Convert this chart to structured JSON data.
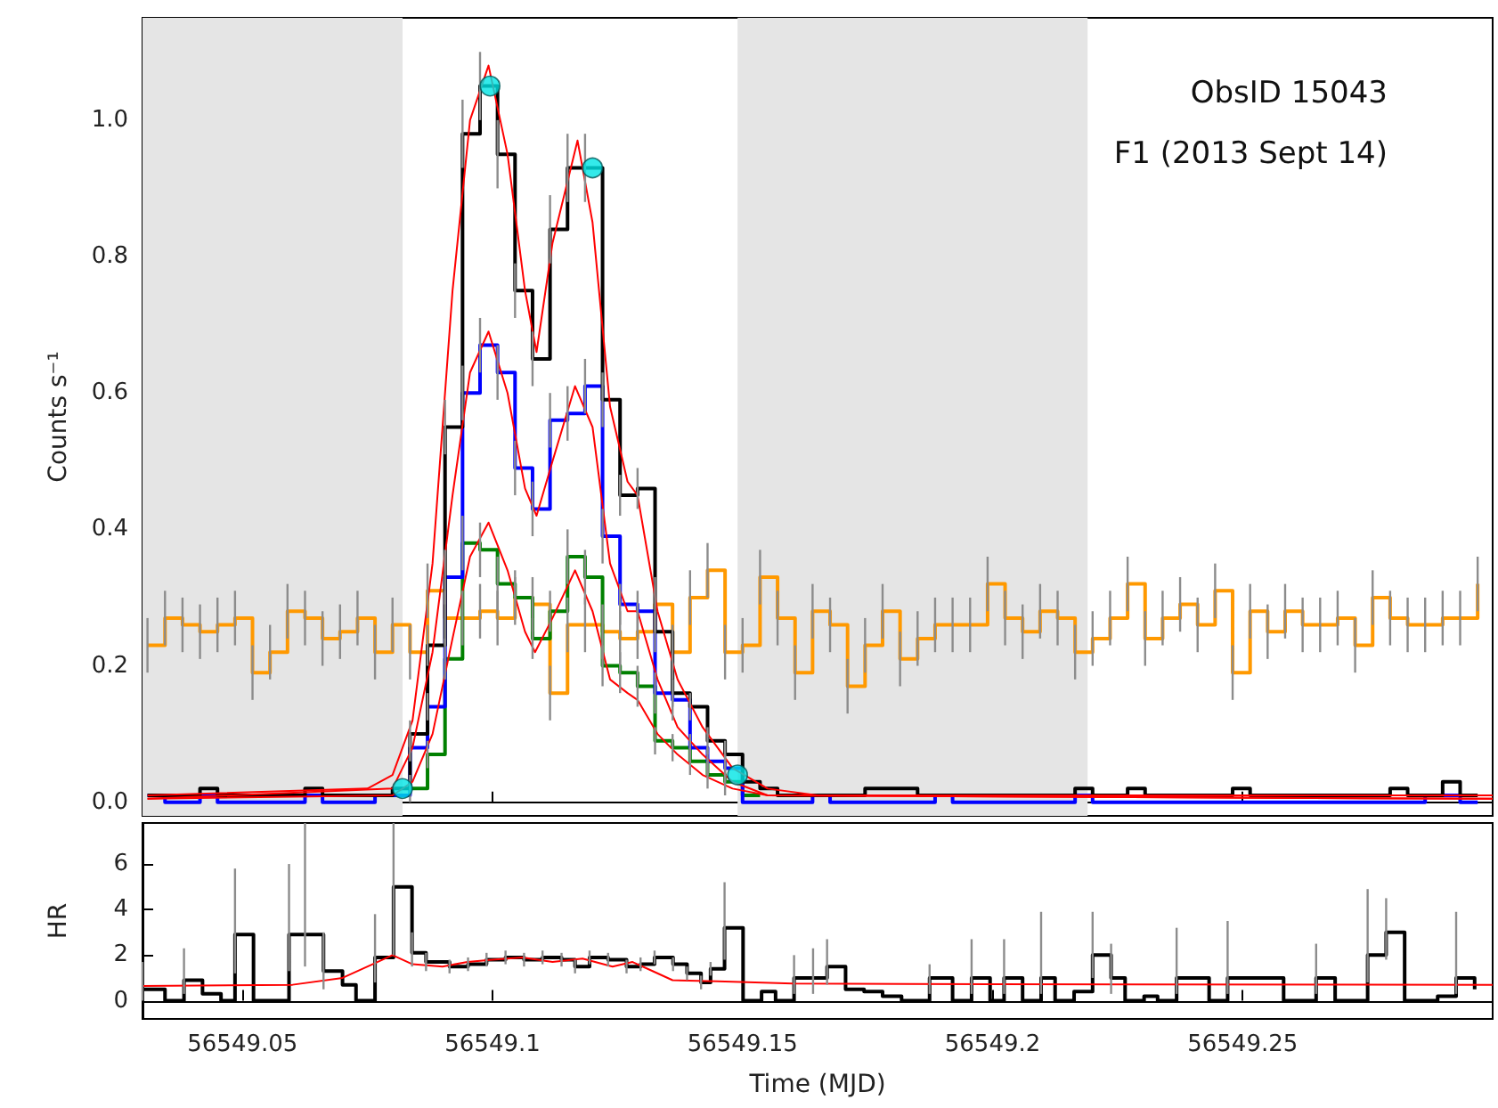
{
  "chart_data": [
    {
      "type": "step",
      "ylabel": "Counts s⁻¹",
      "annotations": [
        "ObsID 15043",
        "F1 (2013 Sept 14)"
      ],
      "xlim": [
        56549.03,
        56549.3
      ],
      "xticks": [
        56549.05,
        56549.1,
        56549.15,
        56549.2,
        56549.25
      ],
      "ylim": [
        -0.02,
        1.15
      ],
      "yticks": [
        {
          "value": 0,
          "label": "0.0"
        },
        0.2,
        0.4,
        0.6,
        0.8,
        {
          "value": 1,
          "label": "1.0"
        }
      ],
      "tick_labels": "y",
      "bands": [
        {
          "axis": "x",
          "from": 56549.03,
          "to": 56549.082,
          "color": "#e5e5e5"
        },
        {
          "axis": "x",
          "from": 56549.149,
          "to": 56549.219,
          "color": "#e5e5e5"
        }
      ],
      "x": [
        56549.031,
        56549.0345,
        56549.038,
        56549.0415,
        56549.045,
        56549.0485,
        56549.052,
        56549.0555,
        56549.059,
        56549.0625,
        56549.066,
        56549.0695,
        56549.073,
        56549.0765,
        56549.08,
        56549.0835,
        56549.087,
        56549.0905,
        56549.094,
        56549.0975,
        56549.101,
        56549.1045,
        56549.108,
        56549.1115,
        56549.115,
        56549.1185,
        56549.122,
        56549.1255,
        56549.129,
        56549.1325,
        56549.136,
        56549.1395,
        56549.143,
        56549.1465,
        56549.15,
        56549.1535,
        56549.157,
        56549.1605,
        56549.164,
        56549.1675,
        56549.171,
        56549.1745,
        56549.178,
        56549.1815,
        56549.185,
        56549.1885,
        56549.192,
        56549.1955,
        56549.199,
        56549.2025,
        56549.206,
        56549.2095,
        56549.213,
        56549.2165,
        56549.22,
        56549.2235,
        56549.227,
        56549.2305,
        56549.234,
        56549.2375,
        56549.241,
        56549.2445,
        56549.248,
        56549.2515,
        56549.255,
        56549.2585,
        56549.262,
        56549.2655,
        56549.269,
        56549.2725,
        56549.276,
        56549.2795,
        56549.283,
        56549.2865,
        56549.29,
        56549.2935,
        56549.297
      ],
      "series": [
        {
          "color": "#ff9900",
          "values": [
            0.23,
            0.27,
            0.26,
            0.25,
            0.26,
            0.27,
            0.19,
            0.22,
            0.28,
            0.27,
            0.24,
            0.25,
            0.27,
            0.22,
            0.26,
            0.22,
            0.31,
            0.27,
            0.27,
            0.28,
            0.27,
            0.3,
            0.29,
            0.16,
            0.26,
            0.26,
            0.25,
            0.24,
            0.25,
            0.29,
            0.22,
            0.3,
            0.34,
            0.22,
            0.23,
            0.33,
            0.27,
            0.19,
            0.28,
            0.26,
            0.17,
            0.23,
            0.28,
            0.21,
            0.24,
            0.26,
            0.26,
            0.26,
            0.32,
            0.27,
            0.25,
            0.28,
            0.27,
            0.22,
            0.24,
            0.27,
            0.32,
            0.24,
            0.27,
            0.29,
            0.26,
            0.31,
            0.19,
            0.28,
            0.25,
            0.28,
            0.26,
            0.26,
            0.27,
            0.23,
            0.3,
            0.27,
            0.26,
            0.26,
            0.27,
            0.27,
            0.32
          ],
          "errors": [
            0.04,
            0.04,
            0.04,
            0.04,
            0.04,
            0.04,
            0.04,
            0.04,
            0.04,
            0.04,
            0.04,
            0.04,
            0.04,
            0.04,
            0.04,
            0.04,
            0.04,
            0.04,
            0.04,
            0.04,
            0.04,
            0.04,
            0.04,
            0.04,
            0.04,
            0.04,
            0.04,
            0.04,
            0.04,
            0.04,
            0.04,
            0.04,
            0.04,
            0.04,
            0.04,
            0.04,
            0.04,
            0.04,
            0.04,
            0.04,
            0.04,
            0.04,
            0.04,
            0.04,
            0.04,
            0.04,
            0.04,
            0.04,
            0.04,
            0.04,
            0.04,
            0.04,
            0.04,
            0.04,
            0.04,
            0.04,
            0.04,
            0.04,
            0.04,
            0.04,
            0.04,
            0.04,
            0.04,
            0.04,
            0.04,
            0.04,
            0.04,
            0.04,
            0.04,
            0.04,
            0.04,
            0.04,
            0.04,
            0.04,
            0.04,
            0.04,
            0.04
          ]
        },
        {
          "color": "#008000",
          "values": [
            null,
            null,
            null,
            null,
            null,
            null,
            null,
            null,
            null,
            null,
            null,
            null,
            null,
            null,
            null,
            0.02,
            0.07,
            0.21,
            0.38,
            0.37,
            0.32,
            0.3,
            0.24,
            0.28,
            0.36,
            0.33,
            0.2,
            0.19,
            0.17,
            0.09,
            0.08,
            0.06,
            0.04,
            0.03,
            0.01,
            0.01,
            null,
            null,
            null,
            null,
            null,
            null,
            null,
            null,
            null,
            null,
            null,
            null,
            null,
            null,
            null,
            null,
            null,
            null,
            null,
            null,
            null,
            null,
            null,
            null,
            null,
            null,
            null,
            null,
            null,
            null,
            null,
            null,
            null,
            null,
            null,
            null,
            null,
            null,
            null,
            null,
            null
          ],
          "errors": [
            null,
            null,
            null,
            null,
            null,
            null,
            null,
            null,
            null,
            null,
            null,
            null,
            null,
            null,
            null,
            0.02,
            0.02,
            0.03,
            0.04,
            0.04,
            0.04,
            0.03,
            0.03,
            0.03,
            0.04,
            0.04,
            0.03,
            0.03,
            0.03,
            0.02,
            0.02,
            0.02,
            0.02,
            0.02,
            null,
            null,
            null,
            null,
            null,
            null,
            null,
            null,
            null,
            null,
            null,
            null,
            null,
            null,
            null,
            null,
            null,
            null,
            null,
            null,
            null,
            null,
            null,
            null,
            null,
            null,
            null,
            null,
            null,
            null,
            null,
            null,
            null,
            null,
            null,
            null,
            null,
            null,
            null,
            null,
            null,
            null,
            null
          ]
        },
        {
          "color": "#0000ff",
          "values": [
            0.01,
            0,
            0,
            0.01,
            0,
            0,
            0,
            0,
            0,
            0.01,
            0,
            0,
            0,
            0.01,
            0.01,
            0.08,
            0.14,
            0.33,
            0.6,
            0.67,
            0.63,
            0.49,
            0.43,
            0.56,
            0.57,
            0.61,
            0.39,
            0.29,
            0.28,
            0.16,
            0.15,
            0.08,
            0.06,
            0.05,
            0,
            0,
            0,
            0,
            0.01,
            0,
            0,
            0,
            0,
            0,
            0,
            0.01,
            0,
            0,
            0,
            0,
            0,
            0,
            0,
            0.01,
            0,
            0,
            0,
            0,
            0,
            0,
            0,
            0,
            0,
            0,
            0,
            0,
            0,
            0,
            0,
            0,
            0,
            0,
            0,
            0.01,
            0.01,
            0,
            0
          ],
          "errors": [
            null,
            null,
            null,
            null,
            null,
            null,
            null,
            null,
            null,
            null,
            null,
            null,
            null,
            null,
            null,
            0.02,
            0.02,
            0.04,
            0.04,
            0.04,
            0.04,
            0.04,
            0.04,
            0.04,
            0.04,
            0.04,
            0.04,
            0.03,
            0.03,
            0.03,
            0.03,
            0.02,
            0.02,
            0.02,
            null,
            null,
            null,
            null,
            null,
            null,
            null,
            null,
            null,
            null,
            null,
            null,
            null,
            null,
            null,
            null,
            null,
            null,
            null,
            null,
            null,
            null,
            null,
            null,
            null,
            null,
            null,
            null,
            null,
            null,
            null,
            null,
            null,
            null,
            null,
            null,
            null,
            null,
            null,
            null,
            null,
            null,
            null
          ]
        },
        {
          "color": "#000000",
          "values": [
            0.01,
            0.01,
            0.01,
            0.02,
            0.01,
            0.01,
            0.01,
            0.01,
            0.01,
            0.02,
            0.01,
            0.01,
            0.01,
            0.01,
            0.02,
            0.1,
            0.23,
            0.55,
            0.98,
            1.05,
            0.95,
            0.75,
            0.65,
            0.84,
            0.93,
            0.93,
            0.59,
            0.45,
            0.46,
            0.25,
            0.16,
            0.14,
            0.09,
            0.07,
            0.03,
            0.02,
            0.01,
            0.01,
            0.01,
            0.01,
            0.01,
            0.02,
            0.02,
            0.02,
            0.01,
            0.01,
            0.01,
            0.01,
            0.01,
            0.01,
            0.01,
            0.01,
            0.01,
            0.02,
            0.01,
            0.01,
            0.02,
            0.01,
            0.01,
            0.01,
            0.01,
            0.01,
            0.02,
            0.01,
            0.01,
            0.01,
            0.01,
            0.01,
            0.01,
            0.01,
            0.01,
            0.02,
            0.01,
            0.01,
            0.03,
            0.01,
            0.01
          ],
          "errors": [
            null,
            null,
            null,
            null,
            null,
            null,
            null,
            null,
            null,
            null,
            null,
            null,
            null,
            null,
            null,
            0.02,
            0.03,
            0.04,
            0.05,
            0.05,
            0.05,
            0.04,
            0.04,
            0.05,
            0.05,
            0.05,
            0.04,
            0.03,
            0.03,
            0.03,
            0.02,
            0.02,
            0.02,
            0.02,
            null,
            null,
            null,
            null,
            null,
            null,
            null,
            null,
            null,
            null,
            null,
            null,
            null,
            null,
            null,
            null,
            null,
            null,
            null,
            null,
            null,
            null,
            null,
            null,
            null,
            null,
            null,
            null,
            null,
            null,
            null,
            null,
            null,
            null,
            null,
            null,
            null,
            null,
            null,
            null,
            null,
            null,
            null
          ]
        },
        {
          "type": "line",
          "color": "#ff0000",
          "x": [
            56549.031,
            56549.075,
            56549.08,
            56549.084,
            56549.088,
            56549.092,
            56549.0955,
            56549.0992,
            56549.103,
            56549.1065,
            56549.1088,
            56549.112,
            56549.117,
            56549.12,
            56549.1235,
            56549.127,
            56549.129,
            56549.133,
            56549.137,
            56549.142,
            56549.148,
            56549.155,
            56549.165,
            56549.3
          ],
          "values": [
            0.01,
            0.02,
            0.04,
            0.12,
            0.35,
            0.75,
            1.0,
            1.08,
            0.95,
            0.75,
            0.66,
            0.82,
            0.97,
            0.85,
            0.58,
            0.47,
            0.45,
            0.28,
            0.18,
            0.11,
            0.05,
            0.02,
            0.01,
            0.01
          ]
        },
        {
          "type": "line",
          "color": "#ff0000",
          "x": [
            56549.031,
            56549.08,
            56549.084,
            56549.088,
            56549.092,
            56549.0955,
            56549.0992,
            56549.103,
            56549.1065,
            56549.1088,
            56549.112,
            56549.1165,
            56549.12,
            56549.1235,
            56549.127,
            56549.129,
            56549.133,
            56549.137,
            56549.142,
            56549.148,
            56549.155,
            56549.3
          ],
          "values": [
            0.005,
            0.02,
            0.08,
            0.22,
            0.45,
            0.63,
            0.69,
            0.6,
            0.46,
            0.42,
            0.5,
            0.61,
            0.55,
            0.35,
            0.28,
            0.28,
            0.18,
            0.11,
            0.07,
            0.03,
            0.01,
            0.005
          ]
        },
        {
          "type": "line",
          "color": "#ff0000",
          "x": [
            56549.031,
            56549.08,
            56549.084,
            56549.088,
            56549.092,
            56549.0955,
            56549.0992,
            56549.103,
            56549.1065,
            56549.1085,
            56549.112,
            56549.1165,
            56549.12,
            56549.1235,
            56549.127,
            56549.129,
            56549.133,
            56549.137,
            56549.142,
            56549.148,
            56549.155,
            56549.3
          ],
          "values": [
            0.005,
            0.01,
            0.03,
            0.1,
            0.24,
            0.36,
            0.41,
            0.34,
            0.25,
            0.22,
            0.27,
            0.34,
            0.28,
            0.18,
            0.16,
            0.15,
            0.1,
            0.07,
            0.04,
            0.02,
            0.01,
            0.005
          ]
        },
        {
          "type": "scatter",
          "color": "#00e5e5",
          "marker": "circle",
          "x": [
            56549.082,
            56549.0995,
            56549.12,
            56549.149
          ],
          "values": [
            0.02,
            1.05,
            0.93,
            0.04
          ]
        }
      ]
    },
    {
      "type": "step",
      "xlabel": "Time (MJD)",
      "ylabel": "HR",
      "xlim": [
        56549.03,
        56549.3
      ],
      "xticks": [
        56549.05,
        56549.1,
        56549.15,
        56549.2,
        56549.25
      ],
      "ylim": [
        -0.8,
        7.8
      ],
      "yticks": [
        0,
        2,
        4,
        6
      ],
      "series": [
        {
          "color": "#000000",
          "x": [
            56549.03,
            56549.0345,
            56549.0383,
            56549.042,
            56549.0457,
            56549.0485,
            56549.0522,
            56549.0593,
            56549.0625,
            56549.0662,
            56549.07,
            56549.0727,
            56549.0765,
            56549.0802,
            56549.0839,
            56549.0867,
            56549.0914,
            56549.0951,
            56549.0988,
            56549.1026,
            56549.1063,
            56549.11,
            56549.1138,
            56549.1165,
            56549.1194,
            56549.1231,
            56549.1268,
            56549.1296,
            56549.1324,
            56549.1361,
            56549.1389,
            56549.1417,
            56549.1436,
            56549.1464,
            56549.1501,
            56549.1538,
            56549.1566,
            56549.1603,
            56549.1641,
            56549.1669,
            56549.1706,
            56549.1743,
            56549.178,
            56549.1818,
            56549.1874,
            56549.192,
            56549.1958,
            56549.1995,
            56549.2023,
            56549.206,
            56549.2097,
            56549.2125,
            56549.2163,
            56549.22,
            56549.2237,
            56549.2265,
            56549.2303,
            56549.233,
            56549.2368,
            56549.2433,
            56549.247,
            56549.2582,
            56549.2647,
            56549.2685,
            56549.275,
            56549.2787,
            56549.2824,
            56549.289,
            56549.2927,
            56549.2964
          ],
          "values": [
            0.5,
            0,
            0.9,
            0.3,
            0,
            2.9,
            0,
            2.9,
            2.9,
            1.3,
            0.7,
            0,
            1.9,
            5.0,
            2.1,
            1.7,
            1.5,
            1.6,
            1.8,
            1.9,
            1.8,
            1.9,
            1.8,
            1.5,
            1.9,
            1.8,
            1.5,
            1.6,
            1.9,
            1.6,
            1.2,
            0.8,
            1.4,
            3.2,
            0,
            0.4,
            0,
            1.0,
            1.0,
            1.5,
            0.5,
            0.4,
            0.2,
            0,
            1.0,
            0,
            1.0,
            0,
            1.0,
            0,
            1.0,
            0,
            0.4,
            2.0,
            1.0,
            0,
            0.2,
            0,
            1.0,
            0,
            1.0,
            0,
            1.0,
            0,
            2.0,
            3.0,
            0,
            0.2,
            1.0,
            0.5
          ],
          "errors": [
            [
              0,
              1.7
            ],
            null,
            [
              0.3,
              2.3
            ],
            null,
            null,
            [
              1.2,
              5.8
            ],
            null,
            [
              1.3,
              6.0
            ],
            [
              1.5,
              7.8
            ],
            [
              0.5,
              3.0
            ],
            null,
            null,
            [
              0.8,
              3.8
            ],
            [
              2.0,
              7.8
            ],
            [
              1.5,
              3.0
            ],
            [
              1.3,
              2.1
            ],
            [
              1.2,
              1.8
            ],
            [
              1.3,
              1.9
            ],
            [
              1.5,
              2.1
            ],
            [
              1.6,
              2.2
            ],
            [
              1.5,
              2.1
            ],
            [
              1.6,
              2.2
            ],
            [
              1.5,
              2.1
            ],
            [
              1.2,
              1.8
            ],
            [
              1.6,
              2.2
            ],
            [
              1.5,
              2.1
            ],
            [
              1.2,
              1.8
            ],
            [
              1.3,
              1.9
            ],
            [
              1.6,
              2.2
            ],
            [
              1.3,
              1.9
            ],
            [
              0.9,
              1.5
            ],
            [
              0.5,
              1.1
            ],
            [
              1.1,
              1.7
            ],
            [
              1.8,
              5.2
            ],
            null,
            null,
            null,
            [
              0.3,
              2.0
            ],
            [
              0.3,
              2.3
            ],
            [
              0.7,
              2.7
            ],
            null,
            null,
            null,
            null,
            [
              0.3,
              1.6
            ],
            null,
            [
              0.3,
              2.7
            ],
            null,
            [
              0.3,
              2.7
            ],
            null,
            [
              0.3,
              3.9
            ],
            null,
            null,
            [
              1.0,
              3.9
            ],
            [
              0.3,
              2.5
            ],
            null,
            null,
            null,
            [
              0.3,
              3.2
            ],
            null,
            [
              0.3,
              3.5
            ],
            null,
            [
              0.3,
              2.5
            ],
            null,
            [
              0.8,
              4.9
            ],
            [
              1.8,
              4.5
            ],
            null,
            null,
            [
              0.3,
              3.9
            ],
            null
          ]
        },
        {
          "type": "line",
          "color": "#ff0000",
          "x": [
            56549.03,
            56549.06,
            56549.07,
            56549.076,
            56549.08,
            56549.084,
            56549.09,
            56549.095,
            56549.1,
            56549.106,
            56549.112,
            56549.118,
            56549.124,
            56549.128,
            56549.132,
            56549.136,
            56549.145,
            56549.16,
            56549.2,
            56549.3
          ],
          "values": [
            0.65,
            0.7,
            1.0,
            1.6,
            2.0,
            1.6,
            1.5,
            1.7,
            1.8,
            1.9,
            1.7,
            1.85,
            1.5,
            1.7,
            1.3,
            0.9,
            0.85,
            0.75,
            0.72,
            0.7
          ]
        }
      ]
    }
  ]
}
